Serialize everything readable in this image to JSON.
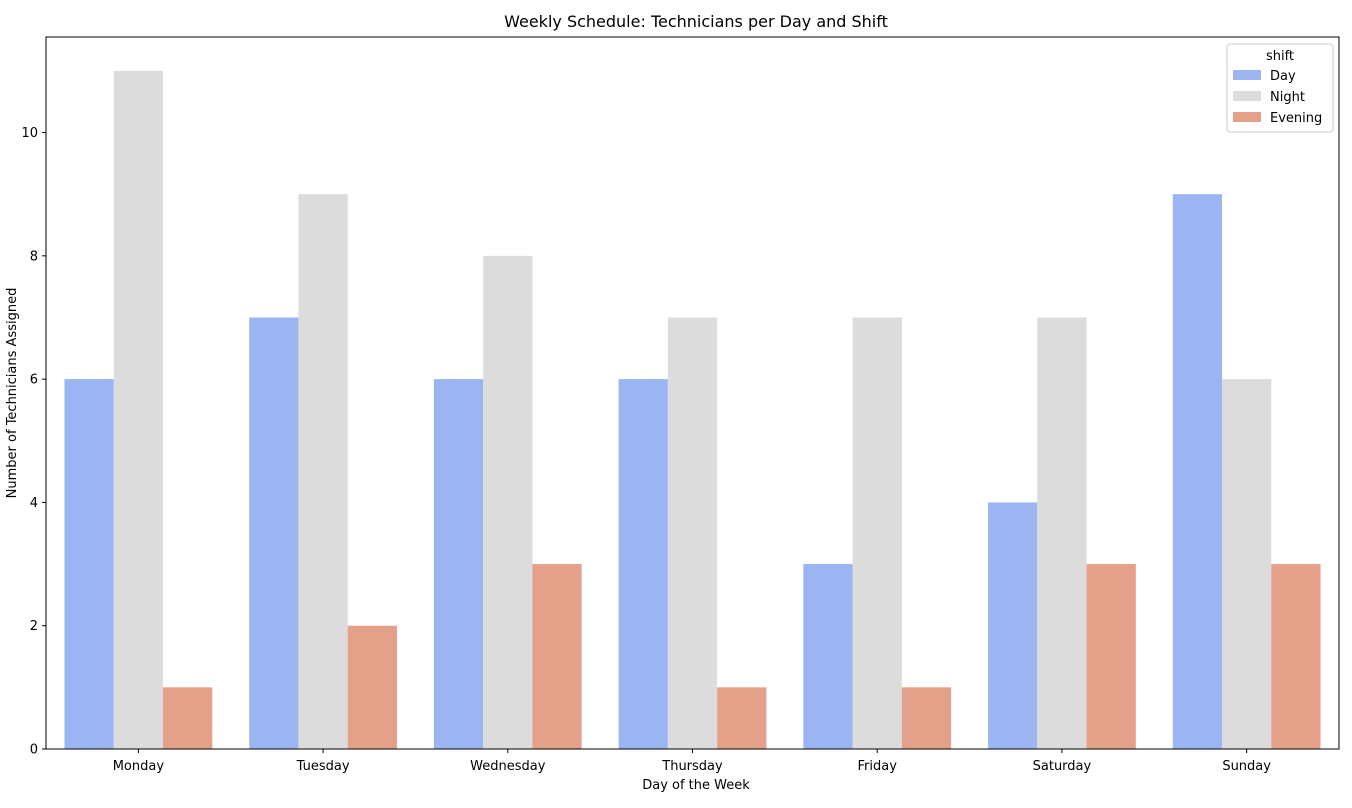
{
  "chart_data": {
    "type": "bar",
    "title": "Weekly Schedule: Technicians per Day and Shift",
    "xlabel": "Day of the Week",
    "ylabel": "Number of Technicians Assigned",
    "categories": [
      "Monday",
      "Tuesday",
      "Wednesday",
      "Thursday",
      "Friday",
      "Saturday",
      "Sunday"
    ],
    "series": [
      {
        "name": "Day",
        "color": "#9ab5f1",
        "values": [
          6,
          7,
          6,
          6,
          3,
          4,
          9
        ]
      },
      {
        "name": "Night",
        "color": "#dcdcdc",
        "values": [
          11,
          9,
          8,
          7,
          7,
          7,
          6
        ]
      },
      {
        "name": "Evening",
        "color": "#e4a088",
        "values": [
          1,
          2,
          3,
          1,
          1,
          3,
          3
        ]
      }
    ],
    "ylim": [
      0,
      11.55
    ],
    "yticks": [
      0,
      2,
      4,
      6,
      8,
      10
    ],
    "legend": {
      "title": "shift",
      "placement": "top-right"
    },
    "grid": false
  }
}
